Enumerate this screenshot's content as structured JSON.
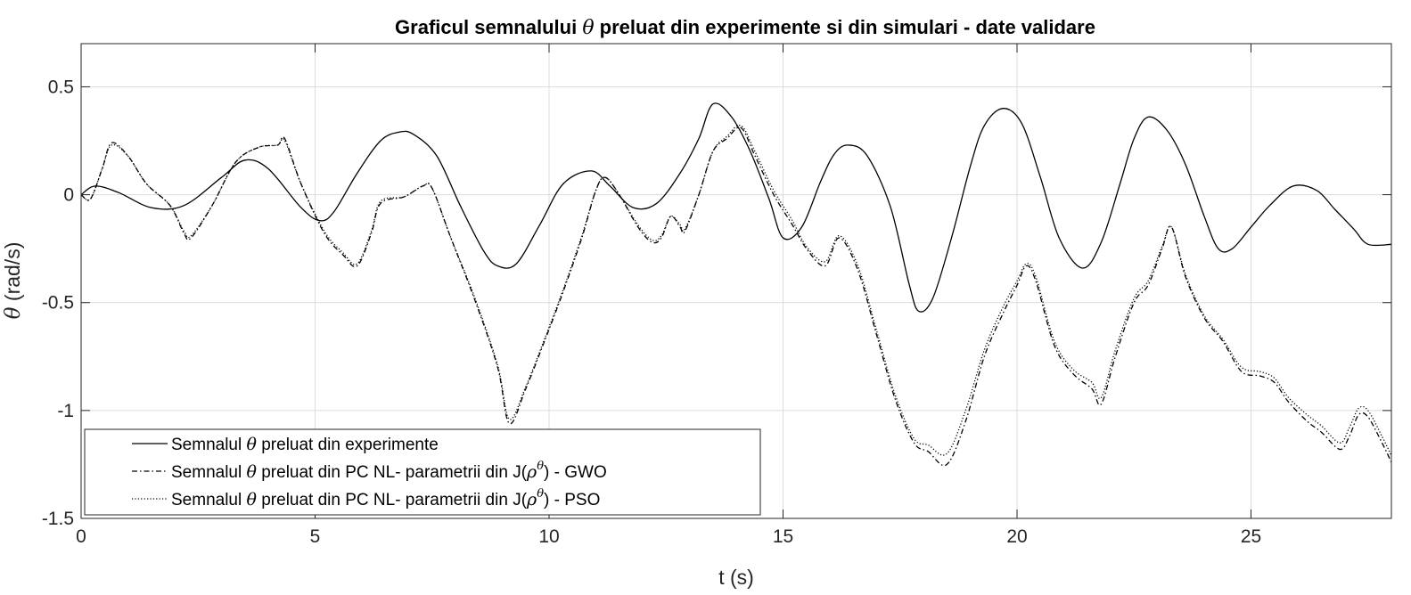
{
  "chart_data": {
    "type": "line",
    "title_parts": [
      "Graficul semnalului ",
      "θ",
      " preluat din experimente si din simulari - date validare"
    ],
    "xlabel": "t (s)",
    "ylabel_parts": [
      "θ",
      " (rad/s)"
    ],
    "xlim": [
      0,
      28
    ],
    "ylim": [
      -1.5,
      0.7
    ],
    "xticks": [
      0,
      5,
      10,
      15,
      20,
      25
    ],
    "yticks": [
      -1.5,
      -1,
      -0.5,
      0,
      0.5
    ],
    "ytick_labels": [
      "-1.5",
      "-1",
      "-0.5",
      "0",
      "0.5"
    ],
    "grid": true,
    "legend_position": "bottom-left",
    "series": [
      {
        "name": "Semnalul θ preluat din experimente",
        "legend_parts": [
          "Semnalul ",
          "θ",
          " preluat din experimente",
          "",
          ""
        ],
        "style": "solid",
        "color": "#000000",
        "x": [
          0,
          0.3,
          0.8,
          1.5,
          2.2,
          3.0,
          3.5,
          4.0,
          4.7,
          5.1,
          5.4,
          5.9,
          6.4,
          6.8,
          7.1,
          7.6,
          8.1,
          8.6,
          8.9,
          9.3,
          9.8,
          10.3,
          10.9,
          11.3,
          11.8,
          12.3,
          12.8,
          13.2,
          13.5,
          13.9,
          14.3,
          14.7,
          15.0,
          15.4,
          15.8,
          16.1,
          16.4,
          16.8,
          17.3,
          17.7,
          17.9,
          18.2,
          18.6,
          19.0,
          19.3,
          19.7,
          20.1,
          20.5,
          20.9,
          21.4,
          21.8,
          22.2,
          22.5,
          22.8,
          23.2,
          23.6,
          24.0,
          24.3,
          24.6,
          25.0,
          25.4,
          25.9,
          26.4,
          26.8,
          27.2,
          27.5,
          28.0
        ],
        "y": [
          0,
          0.04,
          0.01,
          -0.06,
          -0.05,
          0.08,
          0.16,
          0.12,
          -0.06,
          -0.12,
          -0.08,
          0.1,
          0.25,
          0.29,
          0.28,
          0.18,
          -0.05,
          -0.26,
          -0.33,
          -0.32,
          -0.14,
          0.05,
          0.11,
          0.04,
          -0.06,
          -0.04,
          0.1,
          0.26,
          0.42,
          0.36,
          0.2,
          -0.02,
          -0.2,
          -0.15,
          0.06,
          0.19,
          0.23,
          0.18,
          -0.06,
          -0.42,
          -0.54,
          -0.48,
          -0.2,
          0.13,
          0.32,
          0.4,
          0.33,
          0.08,
          -0.2,
          -0.34,
          -0.22,
          0.05,
          0.26,
          0.36,
          0.3,
          0.14,
          -0.1,
          -0.25,
          -0.25,
          -0.15,
          -0.05,
          0.04,
          0.02,
          -0.07,
          -0.16,
          -0.23,
          -0.23
        ]
      },
      {
        "name": "Semnalul θ preluat din PC NL- parametrii din J(ρ^θ) - GWO",
        "legend_parts": [
          "Semnalul ",
          "θ",
          " preluat din PC NL- parametrii din J(",
          "ρ",
          ") - GWO"
        ],
        "style": "dashdot",
        "color": "#000000",
        "x": [
          0,
          0.2,
          0.45,
          0.65,
          1.0,
          1.4,
          1.9,
          2.2,
          2.35,
          2.8,
          3.3,
          3.8,
          4.2,
          4.35,
          4.7,
          5.2,
          5.6,
          5.9,
          6.2,
          6.4,
          6.9,
          7.3,
          7.5,
          7.9,
          8.4,
          8.9,
          9.15,
          9.5,
          9.9,
          10.3,
          10.7,
          11.0,
          11.2,
          11.5,
          11.9,
          12.2,
          12.4,
          12.6,
          12.8,
          12.9,
          13.2,
          13.5,
          13.8,
          14.1,
          14.4,
          14.8,
          15.2,
          15.5,
          15.9,
          16.2,
          16.6,
          17.0,
          17.4,
          17.8,
          18.1,
          18.5,
          18.9,
          19.3,
          19.7,
          20.0,
          20.2,
          20.4,
          20.8,
          21.2,
          21.6,
          21.8,
          22.1,
          22.5,
          22.8,
          23.1,
          23.3,
          23.6,
          24.0,
          24.4,
          24.8,
          25.2,
          25.5,
          25.8,
          26.2,
          26.5,
          26.9,
          27.1,
          27.3,
          27.5,
          27.8,
          28.0
        ],
        "y": [
          0,
          -0.02,
          0.12,
          0.24,
          0.18,
          0.05,
          -0.05,
          -0.18,
          -0.2,
          -0.05,
          0.15,
          0.22,
          0.23,
          0.26,
          0.05,
          -0.18,
          -0.28,
          -0.33,
          -0.18,
          -0.04,
          -0.01,
          0.04,
          0.03,
          -0.2,
          -0.48,
          -0.8,
          -1.06,
          -0.9,
          -0.68,
          -0.45,
          -0.2,
          0.02,
          0.08,
          0.0,
          -0.15,
          -0.22,
          -0.2,
          -0.1,
          -0.15,
          -0.17,
          0.0,
          0.2,
          0.26,
          0.31,
          0.18,
          0.0,
          -0.14,
          -0.25,
          -0.33,
          -0.2,
          -0.35,
          -0.65,
          -0.95,
          -1.15,
          -1.19,
          -1.25,
          -1.05,
          -0.75,
          -0.55,
          -0.42,
          -0.33,
          -0.4,
          -0.7,
          -0.83,
          -0.9,
          -0.97,
          -0.75,
          -0.5,
          -0.42,
          -0.25,
          -0.15,
          -0.38,
          -0.57,
          -0.68,
          -0.82,
          -0.84,
          -0.87,
          -0.96,
          -1.05,
          -1.1,
          -1.18,
          -1.12,
          -1.02,
          -1.03,
          -1.15,
          -1.24
        ]
      },
      {
        "name": "Semnalul θ preluat din PC NL- parametrii din J(ρ^θ) - PSO",
        "legend_parts": [
          "Semnalul ",
          "θ",
          " preluat din PC NL- parametrii din J(",
          "ρ",
          ") - PSO"
        ],
        "style": "dotted",
        "color": "#000000",
        "x": [
          0,
          0.2,
          0.45,
          0.65,
          1.0,
          1.4,
          1.9,
          2.2,
          2.35,
          2.8,
          3.3,
          3.8,
          4.2,
          4.35,
          4.7,
          5.2,
          5.6,
          5.9,
          6.2,
          6.4,
          6.9,
          7.3,
          7.5,
          7.9,
          8.4,
          8.9,
          9.15,
          9.5,
          9.9,
          10.3,
          10.7,
          11.0,
          11.2,
          11.5,
          11.9,
          12.2,
          12.4,
          12.6,
          12.8,
          12.9,
          13.2,
          13.5,
          13.8,
          14.1,
          14.4,
          14.8,
          15.2,
          15.5,
          15.9,
          16.2,
          16.6,
          17.0,
          17.4,
          17.8,
          18.1,
          18.5,
          18.9,
          19.3,
          19.7,
          20.0,
          20.2,
          20.4,
          20.8,
          21.2,
          21.6,
          21.8,
          22.1,
          22.5,
          22.8,
          23.1,
          23.3,
          23.6,
          24.0,
          24.4,
          24.8,
          25.2,
          25.5,
          25.8,
          26.2,
          26.5,
          26.9,
          27.1,
          27.3,
          27.5,
          27.8,
          28.0
        ],
        "y": [
          0,
          -0.02,
          0.12,
          0.23,
          0.18,
          0.05,
          -0.05,
          -0.17,
          -0.19,
          -0.05,
          0.15,
          0.22,
          0.23,
          0.25,
          0.05,
          -0.17,
          -0.27,
          -0.32,
          -0.17,
          -0.03,
          -0.01,
          0.04,
          0.03,
          -0.2,
          -0.47,
          -0.79,
          -1.04,
          -0.89,
          -0.67,
          -0.44,
          -0.19,
          0.02,
          0.08,
          0.0,
          -0.14,
          -0.21,
          -0.19,
          -0.1,
          -0.14,
          -0.16,
          0.0,
          0.2,
          0.27,
          0.32,
          0.2,
          0.02,
          -0.12,
          -0.24,
          -0.31,
          -0.19,
          -0.33,
          -0.63,
          -0.93,
          -1.13,
          -1.16,
          -1.2,
          -1.0,
          -0.72,
          -0.52,
          -0.4,
          -0.32,
          -0.38,
          -0.68,
          -0.81,
          -0.87,
          -0.94,
          -0.72,
          -0.48,
          -0.4,
          -0.24,
          -0.15,
          -0.37,
          -0.56,
          -0.67,
          -0.8,
          -0.82,
          -0.85,
          -0.94,
          -1.02,
          -1.07,
          -1.15,
          -1.08,
          -0.99,
          -1.0,
          -1.12,
          -1.21
        ]
      }
    ]
  }
}
